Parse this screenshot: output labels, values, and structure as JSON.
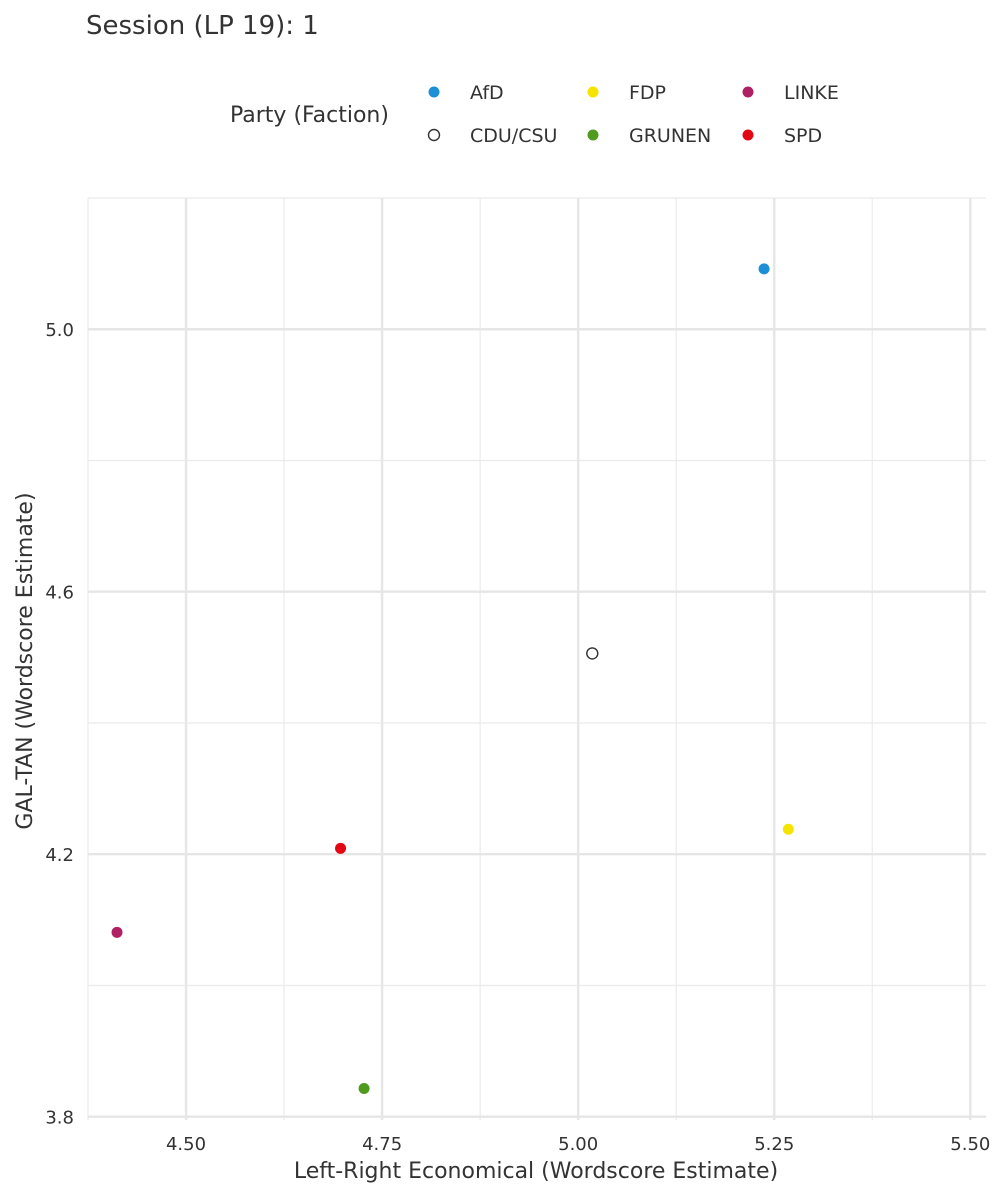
{
  "chart_data": {
    "type": "scatter",
    "title": "Session (LP 19): 1",
    "xlabel": "Left-Right Economical (Wordscore Estimate)",
    "ylabel": "GAL-TAN (Wordscore Estimate)",
    "xlim": [
      4.375,
      5.52
    ],
    "ylim": [
      3.795,
      5.2
    ],
    "x_ticks": [
      4.5,
      4.75,
      5.0,
      5.25,
      5.5
    ],
    "x_tick_labels": [
      "4.50",
      "4.75",
      "5.00",
      "5.25",
      "5.50"
    ],
    "y_ticks": [
      3.8,
      4.2,
      4.6,
      5.0
    ],
    "y_tick_labels": [
      "3.8",
      "4.2",
      "4.6",
      "5.0"
    ],
    "grid": true,
    "legend": {
      "title": "Party (Faction)",
      "position": "top"
    },
    "series": [
      {
        "name": "AfD",
        "color": "#1c8fd6",
        "hollow": false,
        "x": [
          5.237
        ],
        "y": [
          5.092
        ]
      },
      {
        "name": "CDU/CSU",
        "color": "#333333",
        "hollow": true,
        "x": [
          5.018
        ],
        "y": [
          4.506
        ]
      },
      {
        "name": "FDP",
        "color": "#f5e400",
        "hollow": false,
        "x": [
          5.268
        ],
        "y": [
          4.238
        ]
      },
      {
        "name": "GRUNEN",
        "color": "#4f9a1f",
        "hollow": false,
        "x": [
          4.727
        ],
        "y": [
          3.843
        ]
      },
      {
        "name": "LINKE",
        "color": "#b02064",
        "hollow": false,
        "x": [
          4.412
        ],
        "y": [
          4.081
        ]
      },
      {
        "name": "SPD",
        "color": "#e30613",
        "hollow": false,
        "x": [
          4.697
        ],
        "y": [
          4.209
        ]
      }
    ]
  }
}
